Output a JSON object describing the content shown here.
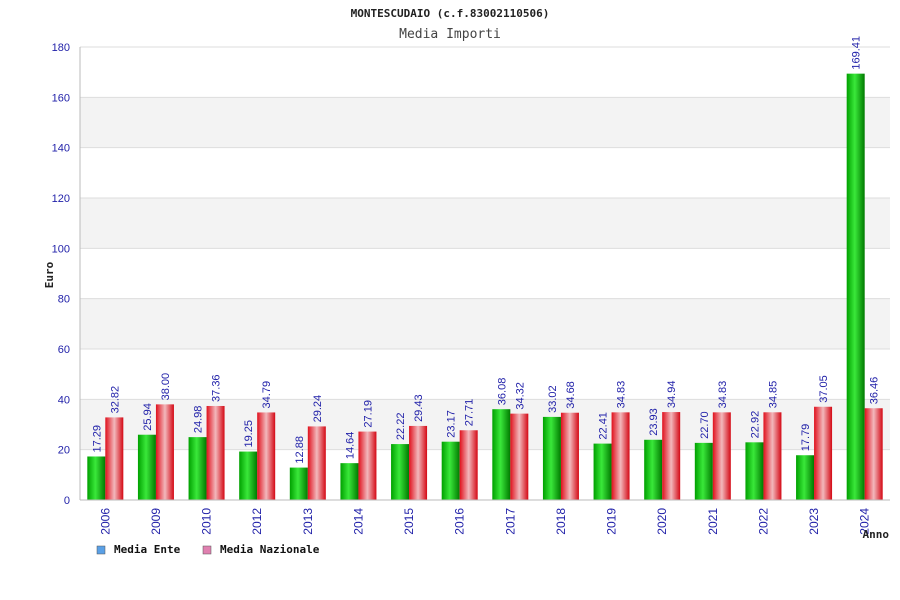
{
  "chart_data": {
    "type": "bar",
    "title": "MONTESCUDAIO (c.f.83002110506)",
    "subtitle": "Media Importi",
    "xlabel": "Anno",
    "ylabel": "Euro",
    "ylim": [
      0,
      180
    ],
    "yticks": [
      0,
      20,
      40,
      60,
      80,
      100,
      120,
      140,
      160,
      180
    ],
    "grid": true,
    "legend_position": "bottom-left",
    "categories": [
      "2006",
      "2009",
      "2010",
      "2012",
      "2013",
      "2014",
      "2015",
      "2016",
      "2017",
      "2018",
      "2019",
      "2020",
      "2021",
      "2022",
      "2023",
      "2024"
    ],
    "series": [
      {
        "name": "Media Ente",
        "color": "#00b000",
        "legend_color": "#5aa0e6",
        "values": [
          17.29,
          25.94,
          24.98,
          19.25,
          12.88,
          14.64,
          22.22,
          23.17,
          36.08,
          33.02,
          22.41,
          23.93,
          22.7,
          22.92,
          17.79,
          169.41
        ],
        "labels": [
          "17.29",
          "25.94",
          "24.98",
          "19.25",
          "12.88",
          "14.64",
          "22.22",
          "23.17",
          "36.08",
          "33.02",
          "22.41",
          "23.93",
          "22.70",
          "22.92",
          "17.79",
          "169.41"
        ]
      },
      {
        "name": "Media Nazionale",
        "color": "#e0101c",
        "legend_color": "#e080b0",
        "values": [
          32.82,
          38.0,
          37.36,
          34.79,
          29.24,
          27.19,
          29.43,
          27.71,
          34.32,
          34.68,
          34.83,
          34.94,
          34.83,
          34.85,
          37.05,
          36.46
        ],
        "labels": [
          "32.82",
          "38.00",
          "37.36",
          "34.79",
          "29.24",
          "27.19",
          "29.43",
          "27.71",
          "34.32",
          "34.68",
          "34.83",
          "34.94",
          "34.83",
          "34.85",
          "37.05",
          "36.46"
        ]
      }
    ]
  }
}
